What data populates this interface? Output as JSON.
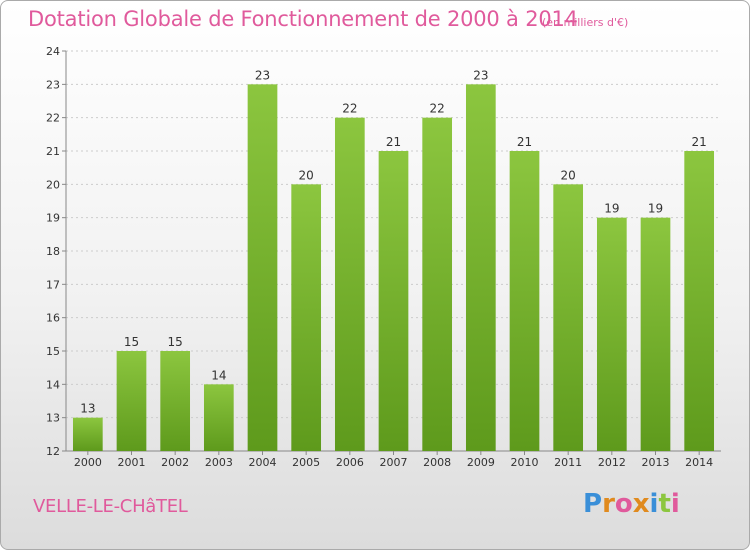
{
  "header": {
    "title": "Dotation Globale de Fonctionnement de 2000 à 2014",
    "subtitle": "(en milliers d'€)"
  },
  "footer": {
    "commune": "VELLE-LE-CHâTEL",
    "logo_letters": [
      "P",
      "r",
      "o",
      "x",
      "i",
      "t",
      "i"
    ],
    "logo_colors": [
      "#3a8fd8",
      "#e08a1e",
      "#e05a9c",
      "#e08a1e",
      "#3a8fd8",
      "#8cc63f",
      "#e05a9c"
    ]
  },
  "chart_data": {
    "type": "bar",
    "categories": [
      "2000",
      "2001",
      "2002",
      "2003",
      "2004",
      "2005",
      "2006",
      "2007",
      "2008",
      "2009",
      "2010",
      "2011",
      "2012",
      "2013",
      "2014"
    ],
    "values": [
      13,
      15,
      15,
      14,
      23,
      20,
      22,
      21,
      22,
      23,
      21,
      20,
      19,
      19,
      21
    ],
    "ylim": [
      12,
      24
    ],
    "yticks": [
      "12",
      "13",
      "14",
      "15",
      "16",
      "17",
      "18",
      "19",
      "20",
      "21",
      "22",
      "23",
      "24"
    ],
    "grid": true,
    "bar_color": "#8cc63f",
    "bar_color_dark": "#5e9a1c"
  }
}
